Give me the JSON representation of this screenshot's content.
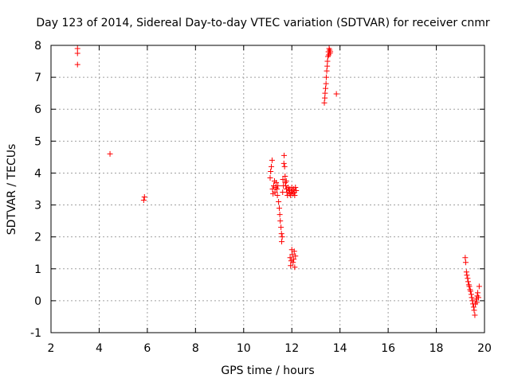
{
  "chart_data": {
    "type": "scatter",
    "title": "Day 123 of 2014, Sidereal Day-to-day VTEC variation (SDTVAR) for receiver cnmr",
    "xlabel": "GPS time / hours",
    "ylabel": "SDTVAR / TECUs",
    "xlim": [
      2,
      20
    ],
    "ylim": [
      -1,
      8
    ],
    "xticks": [
      2,
      4,
      6,
      8,
      10,
      12,
      14,
      16,
      18,
      20
    ],
    "yticks": [
      -1,
      0,
      1,
      2,
      3,
      4,
      5,
      6,
      7,
      8
    ],
    "grid": true,
    "marker": "+",
    "color": "#ff0000",
    "series": [
      {
        "name": "SDTVAR",
        "x": [
          3.1,
          3.1,
          3.1,
          4.45,
          5.85,
          5.88,
          11.1,
          11.12,
          11.15,
          11.18,
          11.2,
          11.22,
          11.25,
          11.28,
          11.3,
          11.33,
          11.35,
          11.38,
          11.4,
          11.42,
          11.45,
          11.48,
          11.5,
          11.52,
          11.55,
          11.57,
          11.58,
          11.6,
          11.62,
          11.63,
          11.65,
          11.67,
          11.68,
          11.7,
          11.72,
          11.73,
          11.75,
          11.77,
          11.78,
          11.8,
          11.82,
          11.85,
          11.88,
          11.9,
          11.92,
          11.95,
          11.98,
          12.0,
          12.02,
          12.05,
          12.08,
          12.1,
          12.12,
          12.15,
          12.18,
          11.93,
          11.95,
          11.97,
          12.0,
          12.02,
          12.05,
          12.08,
          12.1,
          12.12,
          12.15,
          13.35,
          13.37,
          13.38,
          13.4,
          13.42,
          13.43,
          13.45,
          13.47,
          13.48,
          13.5,
          13.52,
          13.53,
          13.55,
          13.57,
          13.58,
          13.6,
          13.85,
          19.2,
          19.22,
          19.25,
          19.27,
          19.3,
          19.32,
          19.35,
          19.37,
          19.4,
          19.42,
          19.45,
          19.47,
          19.5,
          19.52,
          19.55,
          19.57,
          19.6,
          19.62,
          19.65,
          19.68,
          19.7,
          19.72,
          19.75,
          19.78
        ],
        "y": [
          7.9,
          7.75,
          7.4,
          4.6,
          3.15,
          3.25,
          3.85,
          4.05,
          4.2,
          4.4,
          3.5,
          3.35,
          3.6,
          3.75,
          3.4,
          3.55,
          3.7,
          3.5,
          3.3,
          3.6,
          3.1,
          2.9,
          2.7,
          2.5,
          2.3,
          2.1,
          1.85,
          2.0,
          3.4,
          3.8,
          3.6,
          4.3,
          4.55,
          4.2,
          3.9,
          3.7,
          3.6,
          3.75,
          3.5,
          3.4,
          3.3,
          3.55,
          3.45,
          3.35,
          3.5,
          3.3,
          3.4,
          3.55,
          3.45,
          3.35,
          3.5,
          3.4,
          3.3,
          3.55,
          3.45,
          1.35,
          1.1,
          1.25,
          1.6,
          1.45,
          1.2,
          1.3,
          1.55,
          1.05,
          1.4,
          6.2,
          6.35,
          6.5,
          6.65,
          6.8,
          7.0,
          7.2,
          7.35,
          7.5,
          7.65,
          7.8,
          7.7,
          7.9,
          7.85,
          7.75,
          7.8,
          6.48,
          1.35,
          1.2,
          0.9,
          0.8,
          0.7,
          0.6,
          0.5,
          0.45,
          0.35,
          0.3,
          0.2,
          0.1,
          0.0,
          -0.1,
          -0.2,
          -0.3,
          -0.45,
          -0.1,
          0.05,
          -0.05,
          0.15,
          0.25,
          0.1,
          0.45
        ]
      }
    ]
  }
}
